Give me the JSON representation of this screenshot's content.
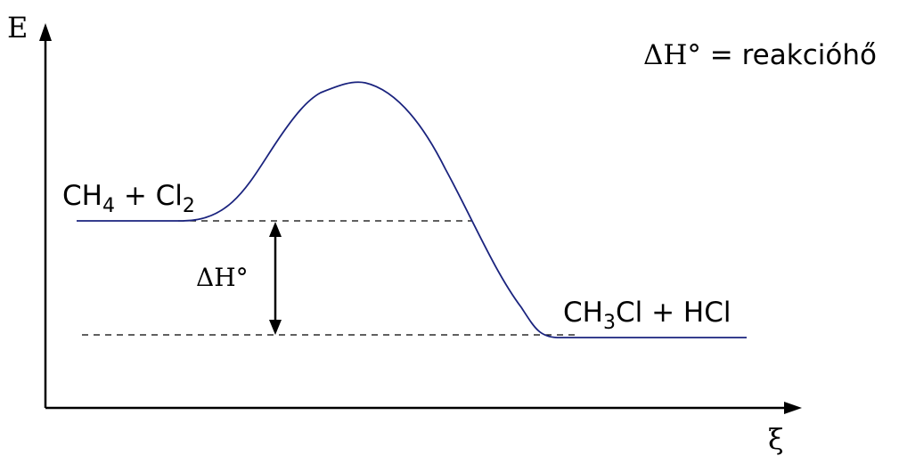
{
  "axes": {
    "y_label": "E",
    "x_label": "ξ"
  },
  "legend_note": {
    "symbol": "ΔH°",
    "equals": " = ",
    "meaning": "reakcióhő"
  },
  "reactants": {
    "part1": "CH",
    "sub1": "4",
    "part2": " + Cl",
    "sub2": "2"
  },
  "products": {
    "part1": "CH",
    "sub1": "3",
    "part2": "Cl + HCl"
  },
  "delta_label": "ΔH°",
  "colors": {
    "curve": "#1a237e",
    "axes": "#000000",
    "dashes": "#000000"
  }
}
